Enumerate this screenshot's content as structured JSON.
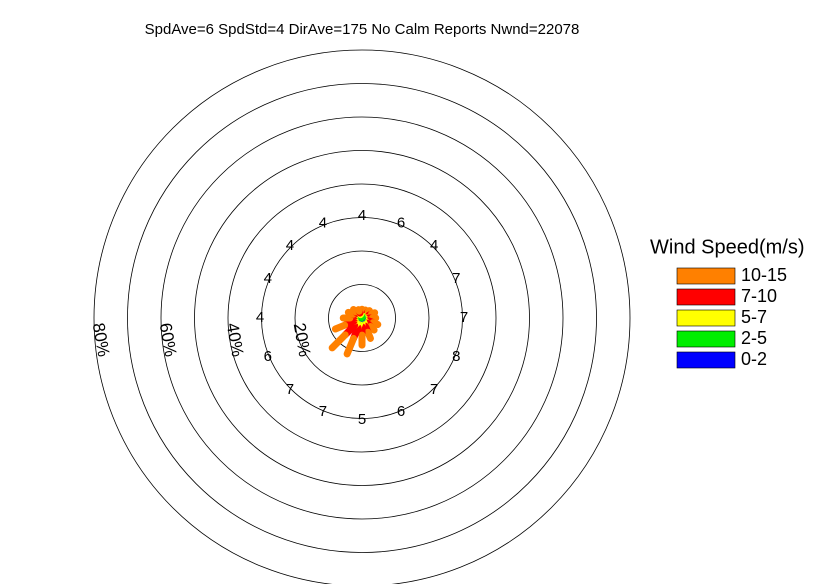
{
  "chart_data": {
    "type": "windrose",
    "title": "SpdAve=6  SpdStd=4  DirAve=175   No Calm Reports  Nwnd=22078",
    "legend_title": "Wind Speed(m/s)",
    "rlim": [
      0,
      80
    ],
    "rings": [
      10,
      30,
      50,
      70
    ],
    "rticks": [
      {
        "value": 20,
        "label": "20%"
      },
      {
        "value": 40,
        "label": "40%"
      },
      {
        "value": 60,
        "label": "60%"
      },
      {
        "value": 80,
        "label": "80%"
      }
    ],
    "mean_speeds": [
      4,
      6,
      4,
      7,
      7,
      8,
      7,
      6,
      5,
      7,
      7,
      6,
      4,
      4,
      4,
      4
    ],
    "series": [
      {
        "name": "0-2",
        "color": "#0000ff",
        "values": [
          0.1,
          0.1,
          0.1,
          0.1,
          0.1,
          0.1,
          0.1,
          0.1,
          0.1,
          0.1,
          0.1,
          0.1,
          0.1,
          0.1,
          0.1,
          0.1
        ]
      },
      {
        "name": "2-5",
        "color": "#00ee00",
        "values": [
          1,
          1,
          1,
          1,
          1,
          1,
          1,
          1,
          1,
          1,
          1,
          1,
          1,
          1,
          1,
          1
        ]
      },
      {
        "name": "5-7",
        "color": "#ffff00",
        "values": [
          0.5,
          0.5,
          0.7,
          1,
          1,
          1,
          1,
          1.5,
          1.5,
          2,
          2,
          1.5,
          1,
          0.8,
          0.7,
          0.5
        ]
      },
      {
        "name": "7-10",
        "color": "#ff0000",
        "values": [
          0.5,
          0.5,
          0.8,
          1,
          1,
          1.5,
          1.5,
          2,
          2.5,
          3.5,
          4,
          3,
          1.5,
          1,
          0.8,
          0.6
        ]
      },
      {
        "name": "10-15",
        "color": "#ff8000",
        "values": [
          0.5,
          0.5,
          0.5,
          1,
          1,
          1.5,
          1.5,
          2,
          3,
          5,
          5.5,
          3,
          2,
          1.5,
          1,
          0.5
        ]
      }
    ]
  }
}
